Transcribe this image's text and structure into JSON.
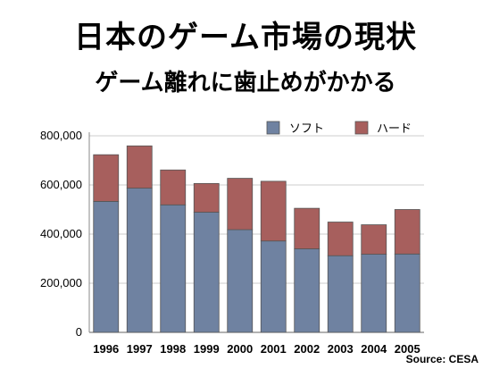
{
  "header": {
    "title": "日本のゲーム市場の現状",
    "subtitle": "ゲーム離れに歯止めがかかる"
  },
  "source": "Source: CESA",
  "colors": {
    "soft": "#6f82a1",
    "hard": "#a75f5d"
  },
  "chart_data": {
    "type": "bar",
    "stacked": true,
    "categories": [
      "1996",
      "1997",
      "1998",
      "1999",
      "2000",
      "2001",
      "2002",
      "2003",
      "2004",
      "2005"
    ],
    "series": [
      {
        "name": "ソフト",
        "values": [
          533000,
          587000,
          519000,
          489000,
          418000,
          372000,
          340000,
          312000,
          318000,
          319000
        ]
      },
      {
        "name": "ハード",
        "values": [
          190000,
          172000,
          142000,
          117000,
          209000,
          243000,
          165000,
          137000,
          120000,
          181000
        ]
      }
    ],
    "yticks": [
      "0",
      "200,000",
      "400,000",
      "600,000",
      "800,000"
    ],
    "ylim": [
      0,
      800000
    ],
    "legend": "top-right",
    "grid": true
  }
}
